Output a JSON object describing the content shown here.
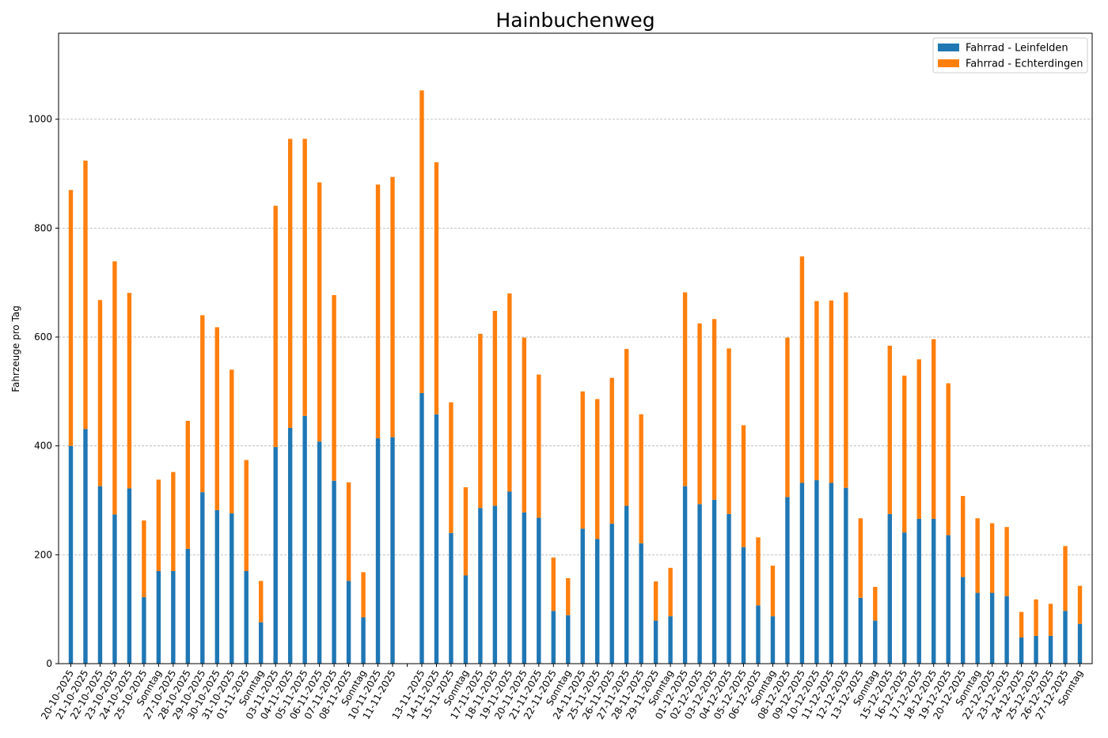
{
  "chart_data": {
    "type": "bar",
    "stacked": true,
    "title": "Hainbuchenweg",
    "xlabel": "",
    "ylabel": "Fahrzeuge pro Tag",
    "ylim": [
      0,
      1158
    ],
    "yticks": [
      0,
      200,
      400,
      600,
      800,
      1000
    ],
    "grid": "y-dashed",
    "legend_position": "top-right",
    "categories": [
      "20-10-2025",
      "21-10-2025",
      "22-10-2025",
      "23-10-2025",
      "24-10-2025",
      "25-10-2025",
      "Sonntag",
      "27-10-2025",
      "28-10-2025",
      "29-10-2025",
      "30-10-2025",
      "31-10-2025",
      "01-11-2025",
      "Sonntag",
      "03-11-2025",
      "04-11-2025",
      "05-11-2025",
      "06-11-2025",
      "07-11-2025",
      "08-11-2025",
      "Sonntag",
      "10-11-2025",
      "11-11-2025",
      "",
      "13-11-2025",
      "14-11-2025",
      "15-11-2025",
      "Sonntag",
      "17-11-2025",
      "18-11-2025",
      "19-11-2025",
      "20-11-2025",
      "21-11-2025",
      "22-11-2025",
      "Sonntag",
      "24-11-2025",
      "25-11-2025",
      "26-11-2025",
      "27-11-2025",
      "28-11-2025",
      "29-11-2025",
      "Sonntag",
      "01-12-2025",
      "02-12-2025",
      "03-12-2025",
      "04-12-2025",
      "05-12-2025",
      "06-12-2025",
      "Sonntag",
      "08-12-2025",
      "09-12-2025",
      "10-12-2025",
      "11-12-2025",
      "12-12-2025",
      "13-12-2025",
      "Sonntag",
      "15-12-2025",
      "16-12-2025",
      "17-12-2025",
      "18-12-2025",
      "19-12-2025",
      "20-12-2025",
      "Sonntag",
      "22-12-2025",
      "23-12-2025",
      "24-12-2025",
      "25-12-2025",
      "26-12-2025",
      "27-12-2025",
      "Sonntag"
    ],
    "series": [
      {
        "name": "Fahrrad - Leinfelden",
        "color": "#1f77b4",
        "values": [
          400,
          431,
          326,
          274,
          322,
          122,
          170,
          170,
          211,
          315,
          282,
          276,
          170,
          76,
          398,
          433,
          455,
          408,
          336,
          152,
          85,
          414,
          416,
          0,
          497,
          458,
          240,
          162,
          286,
          290,
          316,
          278,
          268,
          97,
          89,
          248,
          229,
          257,
          290,
          221,
          79,
          87,
          326,
          293,
          301,
          275,
          214,
          107,
          87,
          306,
          332,
          337,
          332,
          323,
          121,
          79,
          275,
          241,
          266,
          266,
          236,
          159,
          130,
          130,
          124,
          48,
          51,
          51,
          97,
          73
        ]
      },
      {
        "name": "Fahrrad - Echterdingen",
        "color": "#ff7f0e",
        "values": [
          470,
          493,
          342,
          465,
          359,
          141,
          168,
          182,
          235,
          325,
          336,
          264,
          204,
          76,
          443,
          531,
          509,
          476,
          341,
          181,
          83,
          466,
          478,
          0,
          556,
          463,
          240,
          162,
          320,
          358,
          364,
          321,
          263,
          98,
          68,
          252,
          257,
          268,
          288,
          237,
          72,
          89,
          356,
          332,
          332,
          304,
          224,
          125,
          93,
          293,
          416,
          329,
          335,
          359,
          146,
          62,
          309,
          288,
          293,
          330,
          279,
          149,
          137,
          128,
          127,
          47,
          67,
          59,
          119,
          70
        ]
      }
    ]
  }
}
